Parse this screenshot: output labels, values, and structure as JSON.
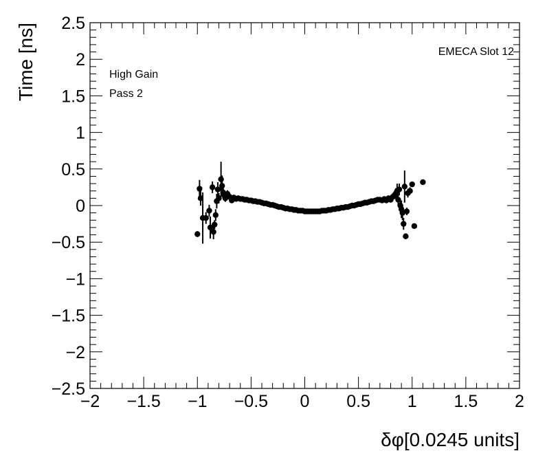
{
  "chart_data": {
    "type": "scatter",
    "title": "",
    "xlabel": "δφ[0.0245 units]",
    "ylabel": "Time [ns]",
    "xlim": [
      -2,
      2
    ],
    "ylim": [
      -2.5,
      2.5
    ],
    "x_ticks": [
      -2,
      -1.5,
      -1,
      -0.5,
      0,
      0.5,
      1,
      1.5,
      2
    ],
    "x_tick_labels": [
      "−2",
      "−1.5",
      "−1",
      "−0.5",
      "0",
      "0.5",
      "1",
      "1.5",
      "2"
    ],
    "y_ticks": [
      -2.5,
      -2,
      -1.5,
      -1,
      -0.5,
      0,
      0.5,
      1,
      1.5,
      2,
      2.5
    ],
    "y_tick_labels": [
      "−2.5",
      "−2",
      "−1.5",
      "−1",
      "−0.5",
      "0",
      "0.5",
      "1",
      "1.5",
      "2",
      "2.5"
    ],
    "grid": false,
    "annotations": {
      "top_right": "EMECA Slot 12",
      "line1": "High Gain",
      "line2": "Pass 2"
    },
    "marker_color": "#000000",
    "series": [
      {
        "points": [
          {
            "x": -1.0,
            "y": -0.39,
            "err": 0.04
          },
          {
            "x": -0.98,
            "y": 0.23,
            "err": 0.12
          },
          {
            "x": -0.97,
            "y": 0.1,
            "err": 0.1
          },
          {
            "x": -0.95,
            "y": -0.17,
            "err": 0.35
          },
          {
            "x": -0.92,
            "y": -0.17,
            "err": 0.08
          },
          {
            "x": -0.89,
            "y": -0.07,
            "err": 0.08
          },
          {
            "x": -0.88,
            "y": -0.3,
            "err": 0.15
          },
          {
            "x": -0.86,
            "y": 0.25,
            "err": 0.08
          },
          {
            "x": -0.85,
            "y": -0.36,
            "err": 0.1
          },
          {
            "x": -0.84,
            "y": -0.26,
            "err": 0.06
          },
          {
            "x": -0.83,
            "y": -0.13,
            "err": 0.08
          },
          {
            "x": -0.82,
            "y": 0.06,
            "err": 0.1
          },
          {
            "x": -0.81,
            "y": 0.22,
            "err": 0.1
          },
          {
            "x": -0.8,
            "y": 0.1,
            "err": 0.07
          },
          {
            "x": -0.78,
            "y": 0.36,
            "err": 0.24
          },
          {
            "x": -0.77,
            "y": 0.27,
            "err": 0.14
          },
          {
            "x": -0.76,
            "y": 0.18,
            "err": 0.08
          },
          {
            "x": -0.75,
            "y": 0.14,
            "err": 0.06
          },
          {
            "x": -0.74,
            "y": 0.1,
            "err": 0.05
          },
          {
            "x": -0.72,
            "y": 0.16,
            "err": 0.05
          },
          {
            "x": -0.7,
            "y": 0.12,
            "err": 0.04
          },
          {
            "x": -0.68,
            "y": 0.07,
            "err": 0.03
          },
          {
            "x": -0.66,
            "y": 0.11,
            "err": 0.03
          },
          {
            "x": -0.64,
            "y": 0.09,
            "err": 0.02
          },
          {
            "x": -0.62,
            "y": 0.1,
            "err": 0.02
          },
          {
            "x": -0.6,
            "y": 0.09,
            "err": 0.02
          },
          {
            "x": -0.58,
            "y": 0.09,
            "err": 0.02
          },
          {
            "x": -0.56,
            "y": 0.08,
            "err": 0.02
          },
          {
            "x": -0.54,
            "y": 0.08,
            "err": 0.01
          },
          {
            "x": -0.52,
            "y": 0.07,
            "err": 0.01
          },
          {
            "x": -0.5,
            "y": 0.07,
            "err": 0.01
          },
          {
            "x": -0.48,
            "y": 0.06,
            "err": 0.01
          },
          {
            "x": -0.46,
            "y": 0.06,
            "err": 0.01
          },
          {
            "x": -0.44,
            "y": 0.05,
            "err": 0.01
          },
          {
            "x": -0.42,
            "y": 0.05,
            "err": 0.01
          },
          {
            "x": -0.4,
            "y": 0.04,
            "err": 0.01
          },
          {
            "x": -0.38,
            "y": 0.03,
            "err": 0.01
          },
          {
            "x": -0.36,
            "y": 0.03,
            "err": 0.01
          },
          {
            "x": -0.34,
            "y": 0.02,
            "err": 0.01
          },
          {
            "x": -0.32,
            "y": 0.01,
            "err": 0.01
          },
          {
            "x": -0.3,
            "y": 0.01,
            "err": 0.01
          },
          {
            "x": -0.28,
            "y": 0.0,
            "err": 0.01
          },
          {
            "x": -0.26,
            "y": -0.01,
            "err": 0.01
          },
          {
            "x": -0.24,
            "y": -0.02,
            "err": 0.01
          },
          {
            "x": -0.22,
            "y": -0.02,
            "err": 0.01
          },
          {
            "x": -0.2,
            "y": -0.03,
            "err": 0.01
          },
          {
            "x": -0.18,
            "y": -0.04,
            "err": 0.01
          },
          {
            "x": -0.16,
            "y": -0.04,
            "err": 0.01
          },
          {
            "x": -0.14,
            "y": -0.05,
            "err": 0.01
          },
          {
            "x": -0.12,
            "y": -0.05,
            "err": 0.01
          },
          {
            "x": -0.1,
            "y": -0.06,
            "err": 0.01
          },
          {
            "x": -0.08,
            "y": -0.06,
            "err": 0.01
          },
          {
            "x": -0.06,
            "y": -0.07,
            "err": 0.01
          },
          {
            "x": -0.04,
            "y": -0.07,
            "err": 0.01
          },
          {
            "x": -0.02,
            "y": -0.07,
            "err": 0.01
          },
          {
            "x": 0.0,
            "y": -0.08,
            "err": 0.01
          },
          {
            "x": 0.02,
            "y": -0.08,
            "err": 0.01
          },
          {
            "x": 0.04,
            "y": -0.08,
            "err": 0.01
          },
          {
            "x": 0.06,
            "y": -0.08,
            "err": 0.01
          },
          {
            "x": 0.08,
            "y": -0.08,
            "err": 0.01
          },
          {
            "x": 0.1,
            "y": -0.08,
            "err": 0.01
          },
          {
            "x": 0.12,
            "y": -0.08,
            "err": 0.01
          },
          {
            "x": 0.14,
            "y": -0.08,
            "err": 0.01
          },
          {
            "x": 0.16,
            "y": -0.07,
            "err": 0.01
          },
          {
            "x": 0.18,
            "y": -0.07,
            "err": 0.01
          },
          {
            "x": 0.2,
            "y": -0.07,
            "err": 0.01
          },
          {
            "x": 0.22,
            "y": -0.06,
            "err": 0.01
          },
          {
            "x": 0.24,
            "y": -0.06,
            "err": 0.01
          },
          {
            "x": 0.26,
            "y": -0.05,
            "err": 0.01
          },
          {
            "x": 0.28,
            "y": -0.05,
            "err": 0.01
          },
          {
            "x": 0.3,
            "y": -0.04,
            "err": 0.01
          },
          {
            "x": 0.32,
            "y": -0.04,
            "err": 0.01
          },
          {
            "x": 0.34,
            "y": -0.03,
            "err": 0.01
          },
          {
            "x": 0.36,
            "y": -0.03,
            "err": 0.01
          },
          {
            "x": 0.38,
            "y": -0.02,
            "err": 0.01
          },
          {
            "x": 0.4,
            "y": -0.02,
            "err": 0.01
          },
          {
            "x": 0.42,
            "y": -0.01,
            "err": 0.01
          },
          {
            "x": 0.44,
            "y": 0.0,
            "err": 0.01
          },
          {
            "x": 0.46,
            "y": 0.0,
            "err": 0.01
          },
          {
            "x": 0.48,
            "y": 0.01,
            "err": 0.01
          },
          {
            "x": 0.5,
            "y": 0.02,
            "err": 0.01
          },
          {
            "x": 0.52,
            "y": 0.02,
            "err": 0.01
          },
          {
            "x": 0.54,
            "y": 0.03,
            "err": 0.01
          },
          {
            "x": 0.56,
            "y": 0.04,
            "err": 0.01
          },
          {
            "x": 0.58,
            "y": 0.04,
            "err": 0.01
          },
          {
            "x": 0.6,
            "y": 0.05,
            "err": 0.01
          },
          {
            "x": 0.62,
            "y": 0.06,
            "err": 0.02
          },
          {
            "x": 0.64,
            "y": 0.06,
            "err": 0.02
          },
          {
            "x": 0.66,
            "y": 0.07,
            "err": 0.02
          },
          {
            "x": 0.68,
            "y": 0.08,
            "err": 0.02
          },
          {
            "x": 0.7,
            "y": 0.08,
            "err": 0.02
          },
          {
            "x": 0.72,
            "y": 0.07,
            "err": 0.02
          },
          {
            "x": 0.74,
            "y": 0.09,
            "err": 0.03
          },
          {
            "x": 0.76,
            "y": 0.07,
            "err": 0.03
          },
          {
            "x": 0.78,
            "y": 0.1,
            "err": 0.03
          },
          {
            "x": 0.8,
            "y": 0.08,
            "err": 0.04
          },
          {
            "x": 0.82,
            "y": 0.12,
            "err": 0.05
          },
          {
            "x": 0.84,
            "y": 0.15,
            "err": 0.06
          },
          {
            "x": 0.85,
            "y": 0.17,
            "err": 0.07
          },
          {
            "x": 0.86,
            "y": 0.2,
            "err": 0.1
          },
          {
            "x": 0.87,
            "y": 0.08,
            "err": 0.08
          },
          {
            "x": 0.88,
            "y": 0.22,
            "err": 0.08
          },
          {
            "x": 0.89,
            "y": 0.0,
            "err": 0.07
          },
          {
            "x": 0.9,
            "y": -0.05,
            "err": 0.12
          },
          {
            "x": 0.91,
            "y": -0.1,
            "err": 0.1
          },
          {
            "x": 0.92,
            "y": -0.25,
            "err": 0.08
          },
          {
            "x": 0.93,
            "y": 0.26,
            "err": 0.22
          },
          {
            "x": 0.94,
            "y": -0.42,
            "err": 0.04
          },
          {
            "x": 0.95,
            "y": -0.08,
            "err": 0.05
          },
          {
            "x": 0.96,
            "y": 0.17,
            "err": 0.06
          },
          {
            "x": 0.98,
            "y": 0.2,
            "err": 0.05
          },
          {
            "x": 1.0,
            "y": 0.29,
            "err": 0.03
          },
          {
            "x": 1.02,
            "y": -0.28,
            "err": 0.03
          },
          {
            "x": 1.1,
            "y": 0.32,
            "err": 0.02
          }
        ]
      }
    ]
  }
}
